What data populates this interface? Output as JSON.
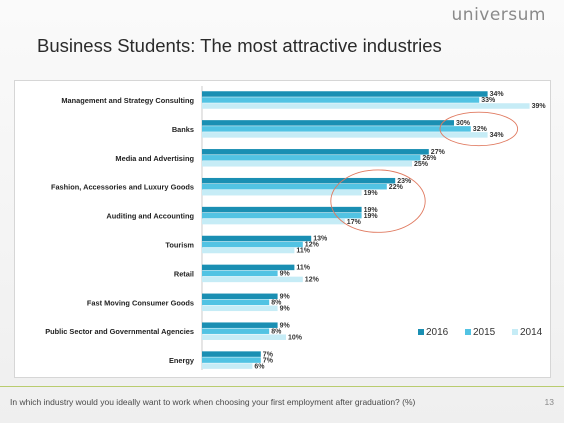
{
  "header": {
    "logo_text": "universum",
    "title": "Business Students: The most attractive industries"
  },
  "footer": {
    "question": "In which industry would you ideally want to work when choosing your first employment after graduation? (%)",
    "page_number": "13"
  },
  "chart_data": {
    "type": "bar",
    "orientation": "horizontal",
    "title": "Business Students: The most attractive industries",
    "categories": [
      "Management and Strategy Consulting",
      "Banks",
      "Media and Advertising",
      "Fashion, Accessories and Luxury Goods",
      "Auditing and Accounting",
      "Tourism",
      "Retail",
      "Fast Moving Consumer Goods",
      "Public Sector and Governmental Agencies",
      "Energy"
    ],
    "series": [
      {
        "name": "2016",
        "color": "#1a8fb3",
        "values": [
          34,
          30,
          27,
          23,
          19,
          13,
          11,
          9,
          9,
          7
        ]
      },
      {
        "name": "2015",
        "color": "#52c3e3",
        "values": [
          33,
          32,
          26,
          22,
          19,
          12,
          9,
          8,
          8,
          7
        ]
      },
      {
        "name": "2014",
        "color": "#c6ecf6",
        "values": [
          39,
          34,
          25,
          19,
          17,
          11,
          12,
          9,
          10,
          6
        ]
      }
    ],
    "value_suffix": "%",
    "xlim": [
      0,
      45
    ],
    "legend_position": "bottom-right",
    "gridlines": false,
    "annotations": [
      {
        "type": "ellipse-highlight",
        "color": "#e07a60",
        "categories": [
          "Banks"
        ]
      },
      {
        "type": "ellipse-highlight",
        "color": "#e07a60",
        "categories": [
          "Fashion, Accessories and Luxury Goods",
          "Auditing and Accounting"
        ]
      }
    ]
  }
}
